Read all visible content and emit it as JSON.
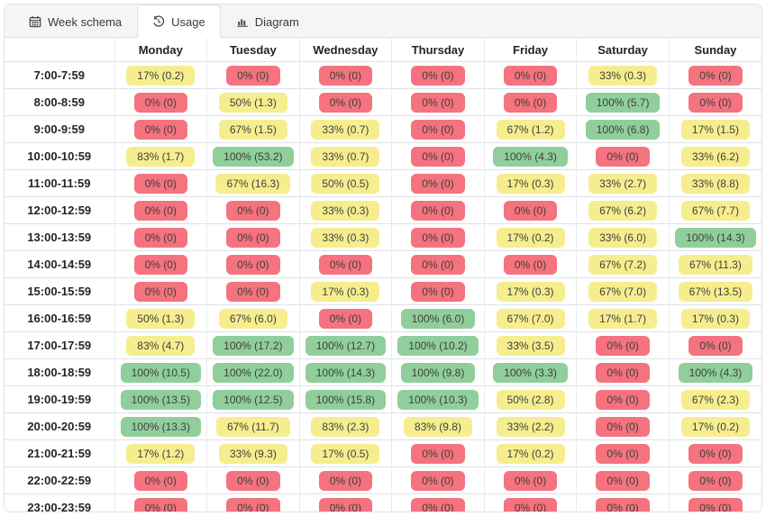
{
  "tabs": [
    {
      "label": "Week schema",
      "icon": "calendar-icon",
      "active": false
    },
    {
      "label": "Usage",
      "icon": "history-icon",
      "active": true
    },
    {
      "label": "Diagram",
      "icon": "bar-chart-icon",
      "active": false
    }
  ],
  "table": {
    "corner_header": "",
    "columns": [
      "Monday",
      "Tuesday",
      "Wednesday",
      "Thursday",
      "Friday",
      "Saturday",
      "Sunday"
    ],
    "rows": [
      {
        "time": "7:00-7:59",
        "cells": [
          "17% (0.2)",
          "0% (0)",
          "0% (0)",
          "0% (0)",
          "0% (0)",
          "33% (0.3)",
          "0% (0)"
        ]
      },
      {
        "time": "8:00-8:59",
        "cells": [
          "0% (0)",
          "50% (1.3)",
          "0% (0)",
          "0% (0)",
          "0% (0)",
          "100% (5.7)",
          "0% (0)"
        ]
      },
      {
        "time": "9:00-9:59",
        "cells": [
          "0% (0)",
          "67% (1.5)",
          "33% (0.7)",
          "0% (0)",
          "67% (1.2)",
          "100% (6.8)",
          "17% (1.5)"
        ]
      },
      {
        "time": "10:00-10:59",
        "cells": [
          "83% (1.7)",
          "100% (53.2)",
          "33% (0.7)",
          "0% (0)",
          "100% (4.3)",
          "0% (0)",
          "33% (6.2)"
        ]
      },
      {
        "time": "11:00-11:59",
        "cells": [
          "0% (0)",
          "67% (16.3)",
          "50% (0.5)",
          "0% (0)",
          "17% (0.3)",
          "33% (2.7)",
          "33% (8.8)"
        ]
      },
      {
        "time": "12:00-12:59",
        "cells": [
          "0% (0)",
          "0% (0)",
          "33% (0.3)",
          "0% (0)",
          "0% (0)",
          "67% (6.2)",
          "67% (7.7)"
        ]
      },
      {
        "time": "13:00-13:59",
        "cells": [
          "0% (0)",
          "0% (0)",
          "33% (0.3)",
          "0% (0)",
          "17% (0.2)",
          "33% (6.0)",
          "100% (14.3)"
        ]
      },
      {
        "time": "14:00-14:59",
        "cells": [
          "0% (0)",
          "0% (0)",
          "0% (0)",
          "0% (0)",
          "0% (0)",
          "67% (7.2)",
          "67% (11.3)"
        ]
      },
      {
        "time": "15:00-15:59",
        "cells": [
          "0% (0)",
          "0% (0)",
          "17% (0.3)",
          "0% (0)",
          "17% (0.3)",
          "67% (7.0)",
          "67% (13.5)"
        ]
      },
      {
        "time": "16:00-16:59",
        "cells": [
          "50% (1.3)",
          "67% (6.0)",
          "0% (0)",
          "100% (6.0)",
          "67% (7.0)",
          "17% (1.7)",
          "17% (0.3)"
        ]
      },
      {
        "time": "17:00-17:59",
        "cells": [
          "83% (4.7)",
          "100% (17.2)",
          "100% (12.7)",
          "100% (10.2)",
          "33% (3.5)",
          "0% (0)",
          "0% (0)"
        ]
      },
      {
        "time": "18:00-18:59",
        "cells": [
          "100% (10.5)",
          "100% (22.0)",
          "100% (14.3)",
          "100% (9.8)",
          "100% (3.3)",
          "0% (0)",
          "100% (4.3)"
        ]
      },
      {
        "time": "19:00-19:59",
        "cells": [
          "100% (13.5)",
          "100% (12.5)",
          "100% (15.8)",
          "100% (10.3)",
          "50% (2.8)",
          "0% (0)",
          "67% (2.3)"
        ]
      },
      {
        "time": "20:00-20:59",
        "cells": [
          "100% (13.3)",
          "67% (11.7)",
          "83% (2.3)",
          "83% (9.8)",
          "33% (2.2)",
          "0% (0)",
          "17% (0.2)"
        ]
      },
      {
        "time": "21:00-21:59",
        "cells": [
          "17% (1.2)",
          "33% (9.3)",
          "17% (0.5)",
          "0% (0)",
          "17% (0.2)",
          "0% (0)",
          "0% (0)"
        ]
      },
      {
        "time": "22:00-22:59",
        "cells": [
          "0% (0)",
          "0% (0)",
          "0% (0)",
          "0% (0)",
          "0% (0)",
          "0% (0)",
          "0% (0)"
        ]
      },
      {
        "time": "23:00-23:59",
        "cells": [
          "0% (0)",
          "0% (0)",
          "0% (0)",
          "0% (0)",
          "0% (0)",
          "0% (0)",
          "0% (0)"
        ]
      }
    ]
  },
  "colors": {
    "full": "#90ce9b",
    "partial": "#f6ee8e",
    "none": "#f4737e",
    "badge_text": "#3e3e3e",
    "border": "#dee2e6",
    "tabbar_bg": "#f5f5f5"
  }
}
